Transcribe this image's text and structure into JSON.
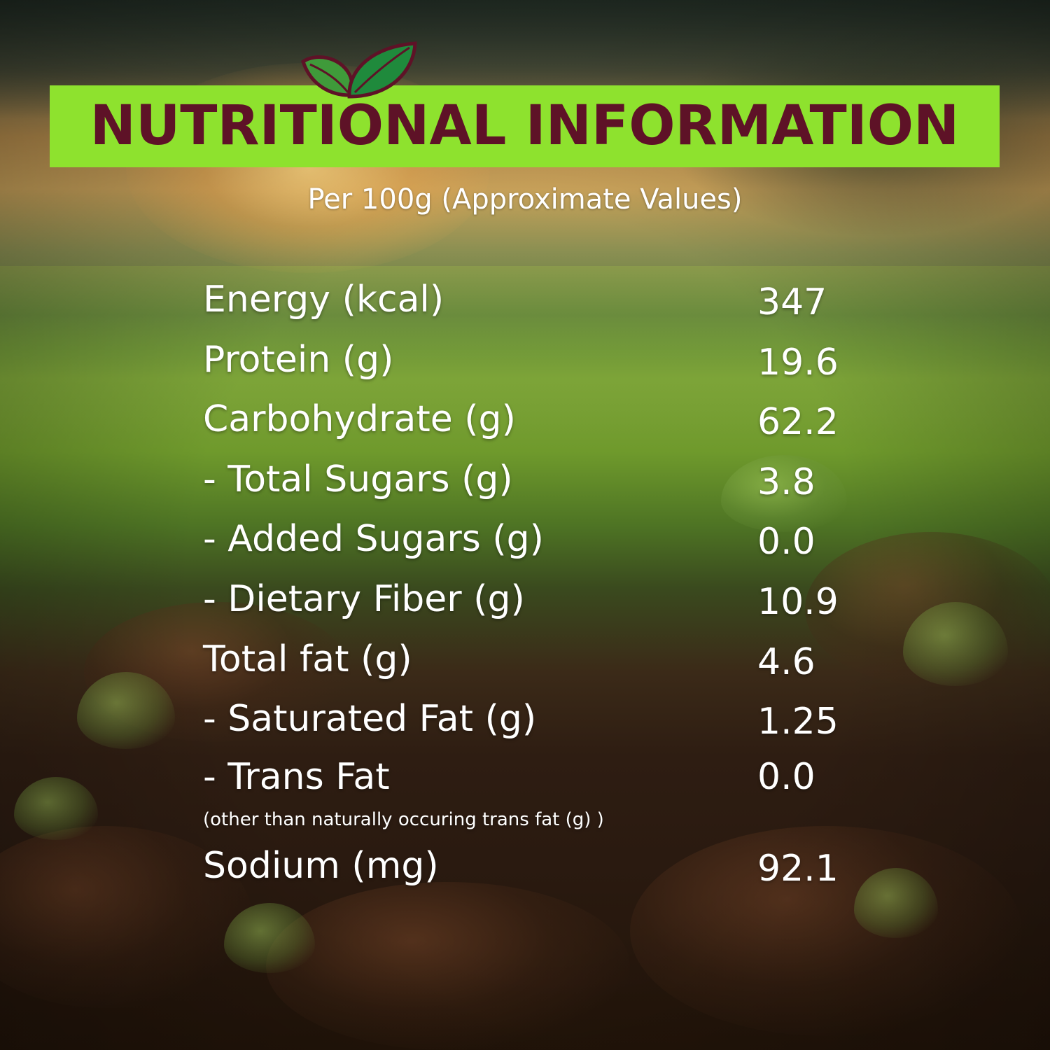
{
  "header": {
    "title": "NUTRITIONAL INFORMATION",
    "subtitle": "Per 100g (Approximate Values)",
    "icon": "leaf-icon",
    "colors": {
      "title_bar": "#8ee22e",
      "title_text": "#5e1227",
      "leaf_green": "#2a8a34",
      "leaf_outline": "#5e1227"
    }
  },
  "nutrition": {
    "rows": [
      {
        "label": "Energy (kcal)",
        "value": "347"
      },
      {
        "label": "Protein (g)",
        "value": "19.6"
      },
      {
        "label": "Carbohydrate (g)",
        "value": "62.2"
      },
      {
        "label": "- Total Sugars (g)",
        "value": "3.8"
      },
      {
        "label": "- Added Sugars (g)",
        "value": "0.0"
      },
      {
        "label": "- Dietary Fiber (g)",
        "value": "10.9"
      },
      {
        "label": "Total fat (g)",
        "value": "4.6"
      },
      {
        "label": "- Saturated Fat (g)",
        "value": "1.25"
      },
      {
        "label": "- Trans Fat",
        "value": "0.0"
      },
      {
        "label": "Sodium (mg)",
        "value": "92.1"
      }
    ],
    "trans_fat_note": "(other than naturally occuring trans fat (g) )"
  }
}
